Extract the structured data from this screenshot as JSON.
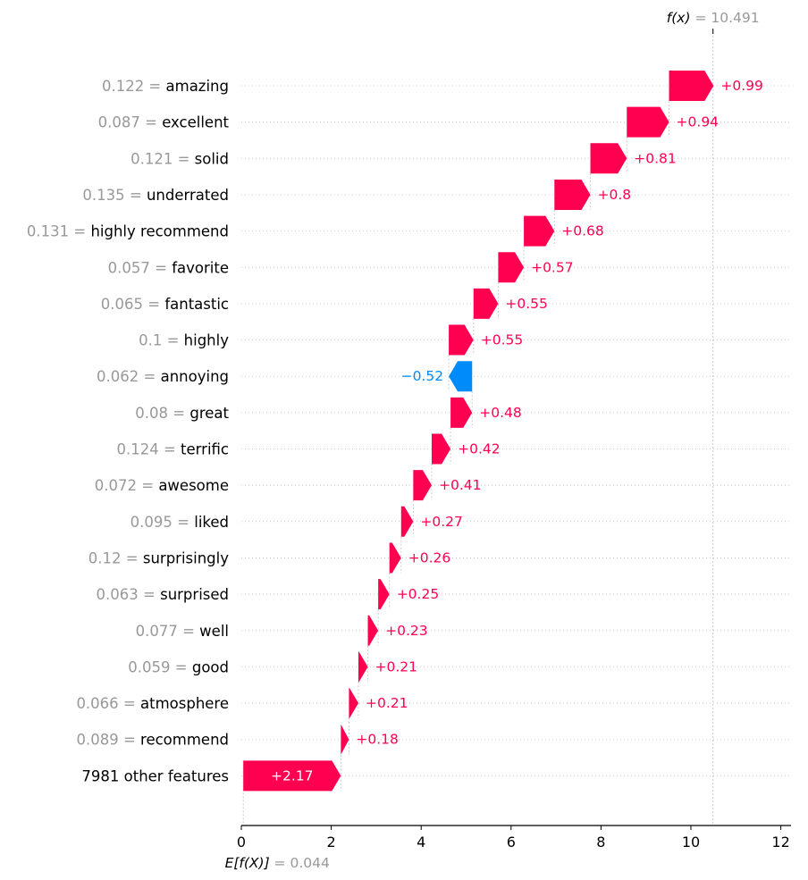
{
  "chart_data": {
    "type": "waterfall",
    "fx": {
      "label": "f(x)",
      "value": 10.491
    },
    "base": {
      "label": "E[f(X)]",
      "value": 0.044
    },
    "xlim": [
      0,
      12.2
    ],
    "xticks": [
      0,
      2,
      4,
      6,
      8,
      10,
      12
    ],
    "colors": {
      "positive": "#ff0051",
      "negative": "#008bfb",
      "feature_value": "#999999",
      "axis": "#000000",
      "grid": "#cccccc"
    },
    "features": [
      {
        "value": "0.122",
        "name": "amazing",
        "contribution": 0.99,
        "label": "+0.99"
      },
      {
        "value": "0.087",
        "name": "excellent",
        "contribution": 0.94,
        "label": "+0.94"
      },
      {
        "value": "0.121",
        "name": "solid",
        "contribution": 0.81,
        "label": "+0.81"
      },
      {
        "value": "0.135",
        "name": "underrated",
        "contribution": 0.8,
        "label": "+0.8"
      },
      {
        "value": "0.131",
        "name": "highly recommend",
        "contribution": 0.68,
        "label": "+0.68"
      },
      {
        "value": "0.057",
        "name": "favorite",
        "contribution": 0.57,
        "label": "+0.57"
      },
      {
        "value": "0.065",
        "name": "fantastic",
        "contribution": 0.55,
        "label": "+0.55"
      },
      {
        "value": "0.1",
        "name": "highly",
        "contribution": 0.55,
        "label": "+0.55"
      },
      {
        "value": "0.062",
        "name": "annoying",
        "contribution": -0.52,
        "label": "−0.52"
      },
      {
        "value": "0.08",
        "name": "great",
        "contribution": 0.48,
        "label": "+0.48"
      },
      {
        "value": "0.124",
        "name": "terrific",
        "contribution": 0.42,
        "label": "+0.42"
      },
      {
        "value": "0.072",
        "name": "awesome",
        "contribution": 0.41,
        "label": "+0.41"
      },
      {
        "value": "0.095",
        "name": "liked",
        "contribution": 0.27,
        "label": "+0.27"
      },
      {
        "value": "0.12",
        "name": "surprisingly",
        "contribution": 0.26,
        "label": "+0.26"
      },
      {
        "value": "0.063",
        "name": "surprised",
        "contribution": 0.25,
        "label": "+0.25"
      },
      {
        "value": "0.077",
        "name": "well",
        "contribution": 0.23,
        "label": "+0.23"
      },
      {
        "value": "0.059",
        "name": "good",
        "contribution": 0.21,
        "label": "+0.21"
      },
      {
        "value": "0.066",
        "name": "atmosphere",
        "contribution": 0.21,
        "label": "+0.21"
      },
      {
        "value": "0.089",
        "name": "recommend",
        "contribution": 0.18,
        "label": "+0.18"
      },
      {
        "value": "",
        "name": "7981 other features",
        "contribution": 2.17,
        "label": "+2.17"
      }
    ]
  }
}
